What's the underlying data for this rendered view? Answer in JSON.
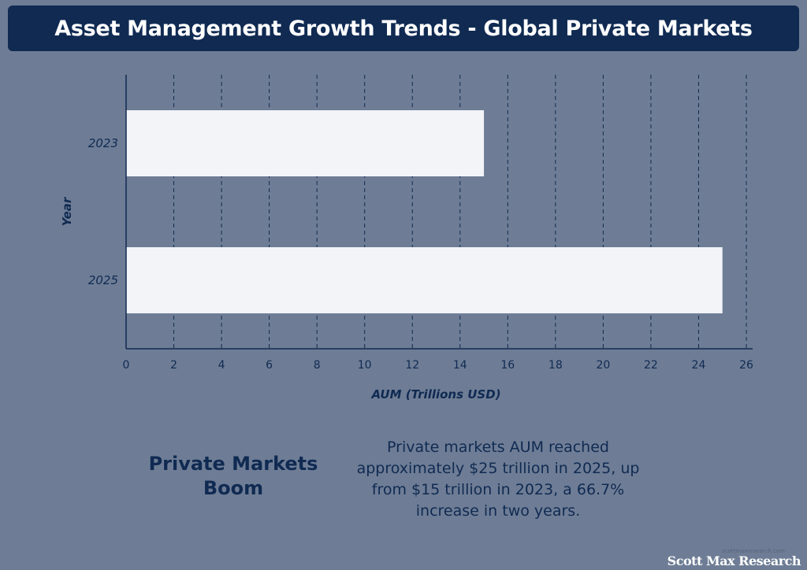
{
  "title": "Asset Management Growth Trends - Global Private Markets",
  "chart_data": {
    "type": "bar",
    "orientation": "horizontal",
    "categories": [
      "2023",
      "2025"
    ],
    "values": [
      15,
      25
    ],
    "xlabel": "AUM (Trillions USD)",
    "ylabel": "Year",
    "xlim": [
      0,
      26
    ],
    "xticks": [
      "0",
      "2",
      "4",
      "6",
      "8",
      "10",
      "12",
      "14",
      "16",
      "18",
      "20",
      "22",
      "24",
      "26"
    ],
    "grid": "vertical-dashed",
    "colors": {
      "bar": "#f2f4f8",
      "axis": "#102a52",
      "grid": "#102a52"
    }
  },
  "callout": {
    "heading": "Private Markets Boom",
    "body": "Private markets AUM reached approximately $25 trillion in 2025, up from $15 trillion in 2023, a 66.7% increase in two years."
  },
  "footer": {
    "credit": "scottmaxresearch.com",
    "brand": "Scott Max Research"
  }
}
